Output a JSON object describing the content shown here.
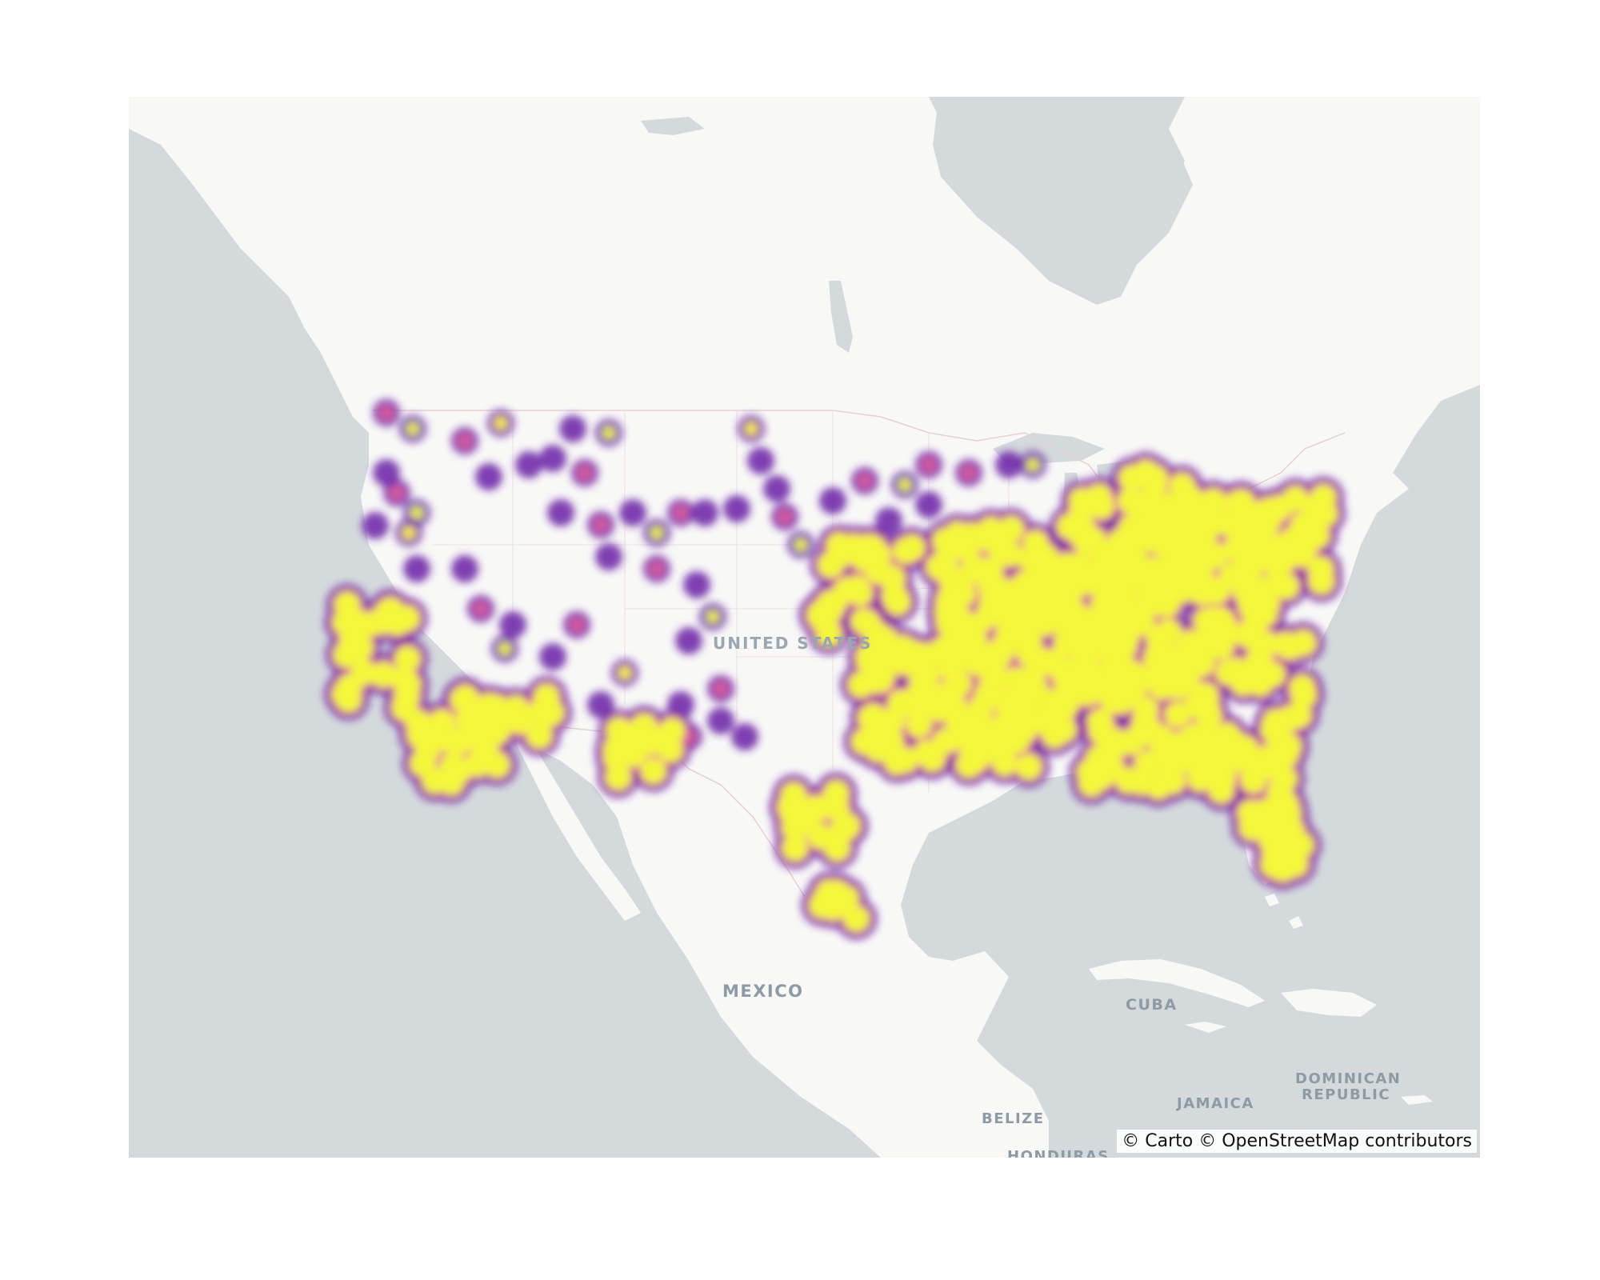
{
  "map": {
    "basemap_style": "carto-positron",
    "colors": {
      "water": "#d4dadc",
      "land": "#f8f8f7",
      "border": "#e7cfd3",
      "heat_low": "#6a1fa6",
      "heat_mid": "#e8629a",
      "heat_high": "#f4f73a"
    },
    "colorscale": "plasma",
    "labels": {
      "united_states": "UNITED STATES",
      "mexico": "MEXICO",
      "cuba": "CUBA",
      "belize": "BELIZE",
      "jamaica": "JAMAICA",
      "dominican_line1": "DOMINICAN",
      "dominican_line2": "REPUBLIC",
      "honduras": "HONDURAS"
    },
    "attribution": "© Carto © OpenStreetMap contributors"
  }
}
